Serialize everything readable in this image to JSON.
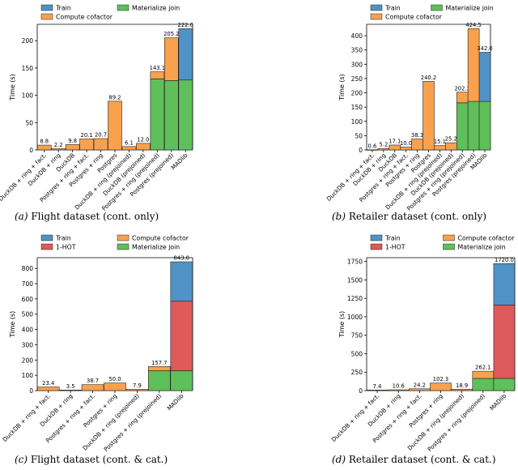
{
  "colors": {
    "train": "#4f93c7",
    "compute": "#f9a14d",
    "materialize": "#5fbf5b",
    "onehot": "#de5a5b",
    "edge": "#222222"
  },
  "chart_data": [
    {
      "type": "bar",
      "stacked": true,
      "caption_label": "(a)",
      "caption_text": "Flight dataset (cont. only)",
      "ylabel": "Time (s)",
      "ylim": [
        0,
        230
      ],
      "yticks": [
        0,
        50,
        100,
        150,
        200
      ],
      "legend": [
        {
          "name": "Train",
          "key": "train"
        },
        {
          "name": "Compute cofactor",
          "key": "compute"
        },
        {
          "name": "Materialize join",
          "key": "materialize"
        }
      ],
      "categories": [
        "DuckDB + ring + fact.",
        "DuckDB + ring",
        "DuckDB",
        "Postgres + ring + fact.",
        "Postgres + ring",
        "Postgres",
        "DuckDB + ring (prejoined)",
        "DuckDB (prejoined)",
        "Postgres + ring (prejoined)",
        "Postgres (prejoined)",
        "MADlib"
      ],
      "series": [
        {
          "name": "Materialize join",
          "key": "materialize",
          "values": [
            0,
            0,
            0,
            0,
            0,
            0,
            0,
            0,
            130,
            127,
            128
          ]
        },
        {
          "name": "Compute cofactor",
          "key": "compute",
          "values": [
            8.8,
            2.2,
            9.8,
            20.1,
            20.7,
            89.2,
            6.1,
            12.0,
            13.1,
            78.2,
            0
          ]
        },
        {
          "name": "Train",
          "key": "train",
          "values": [
            0,
            0,
            0,
            0,
            0,
            0,
            0,
            0,
            0,
            0,
            94
          ]
        }
      ],
      "totals": [
        "8.8",
        "2.2",
        "9.8",
        "20.1",
        "20.7",
        "89.2",
        "6.1",
        "12.0",
        "143.1",
        "205.2",
        "222.0"
      ]
    },
    {
      "type": "bar",
      "stacked": true,
      "caption_label": "(b)",
      "caption_text": "Retailer dataset (cont. only)",
      "ylabel": "Time (s)",
      "ylim": [
        0,
        440
      ],
      "yticks": [
        0,
        50,
        100,
        150,
        200,
        250,
        300,
        350,
        400
      ],
      "legend": [
        {
          "name": "Train",
          "key": "train"
        },
        {
          "name": "Compute cofactor",
          "key": "compute"
        },
        {
          "name": "Materialize join",
          "key": "materialize"
        }
      ],
      "categories": [
        "DuckDB + ring + fact.",
        "DuckDB + ring",
        "DuckDB",
        "Postgres + ring + fact.",
        "Postgres + ring",
        "Postgres",
        "DuckDB + ring (prejoined)",
        "DuckDB (prejoined)",
        "Postgres + ring (prejoined)",
        "Postgres (prejoined)",
        "MADlib"
      ],
      "series": [
        {
          "name": "Materialize join",
          "key": "materialize",
          "values": [
            0,
            0,
            0,
            0,
            0,
            0,
            0,
            0,
            165,
            170,
            170
          ]
        },
        {
          "name": "Compute cofactor",
          "key": "compute",
          "values": [
            0.6,
            5.2,
            17.1,
            10.0,
            38.3,
            240.2,
            15.1,
            25.2,
            37.2,
            254.5,
            0
          ]
        },
        {
          "name": "Train",
          "key": "train",
          "values": [
            0,
            0,
            0,
            0,
            0,
            0,
            0,
            0,
            0,
            0,
            172
          ]
        }
      ],
      "totals": [
        "0.6",
        "5.2",
        "17.1",
        "10.0",
        "38.3",
        "240.2",
        "15.1",
        "25.2",
        "202.2",
        "424.5",
        "342.0"
      ]
    },
    {
      "type": "bar",
      "stacked": true,
      "caption_label": "(c)",
      "caption_text": "Flight dataset (cont. & cat.)",
      "ylabel": "Time (s)",
      "ylim": [
        0,
        870
      ],
      "yticks": [
        0,
        100,
        200,
        300,
        400,
        500,
        600,
        700,
        800
      ],
      "legend": [
        {
          "name": "Train",
          "key": "train"
        },
        {
          "name": "1-HOT",
          "key": "onehot"
        },
        {
          "name": "Compute cofactor",
          "key": "compute"
        },
        {
          "name": "Materialize join",
          "key": "materialize"
        }
      ],
      "categories": [
        "DuckDB + ring + fact.",
        "DuckDB + ring",
        "Postgres + ring + fact.",
        "Postgres + ring",
        "DuckDB + ring (prejoined)",
        "Postgres + ring (prejoined)",
        "MADlib"
      ],
      "series": [
        {
          "name": "Materialize join",
          "key": "materialize",
          "values": [
            0,
            0,
            0,
            0,
            0,
            130,
            130
          ]
        },
        {
          "name": "Compute cofactor",
          "key": "compute",
          "values": [
            23.4,
            3.5,
            38.7,
            50.0,
            7.9,
            27.7,
            0
          ]
        },
        {
          "name": "1-HOT",
          "key": "onehot",
          "values": [
            0,
            0,
            0,
            0,
            0,
            0,
            455
          ]
        },
        {
          "name": "Train",
          "key": "train",
          "values": [
            0,
            0,
            0,
            0,
            0,
            0,
            258
          ]
        }
      ],
      "totals": [
        "23.4",
        "3.5",
        "38.7",
        "50.0",
        "7.9",
        "157.7",
        "843.0"
      ]
    },
    {
      "type": "bar",
      "stacked": true,
      "caption_label": "(d)",
      "caption_text": "Retailer dataset (cont. & cat.)",
      "ylabel": "Time (s)",
      "ylim": [
        0,
        1800
      ],
      "yticks": [
        0,
        250,
        500,
        750,
        1000,
        1250,
        1500,
        1750
      ],
      "legend": [
        {
          "name": "Train",
          "key": "train"
        },
        {
          "name": "1-HOT",
          "key": "onehot"
        },
        {
          "name": "Compute cofactor",
          "key": "compute"
        },
        {
          "name": "Materialize join",
          "key": "materialize"
        }
      ],
      "categories": [
        "DuckDB + ring + fact.",
        "DuckDB + ring",
        "Postgres + ring + fact.",
        "Postgres + ring",
        "DuckDB + ring (prejoined)",
        "Postgres + ring (prejoined)",
        "MADlib"
      ],
      "series": [
        {
          "name": "Materialize join",
          "key": "materialize",
          "values": [
            0,
            0,
            0,
            0,
            0,
            165,
            165
          ]
        },
        {
          "name": "Compute cofactor",
          "key": "compute",
          "values": [
            7.4,
            10.6,
            24.2,
            102.3,
            18.9,
            97.1,
            0
          ]
        },
        {
          "name": "1-HOT",
          "key": "onehot",
          "values": [
            0,
            0,
            0,
            0,
            0,
            0,
            995
          ]
        },
        {
          "name": "Train",
          "key": "train",
          "values": [
            0,
            0,
            0,
            0,
            0,
            0,
            560
          ]
        }
      ],
      "totals": [
        "7.4",
        "10.6",
        "24.2",
        "102.3",
        "18.9",
        "262.1",
        "1720.0"
      ]
    }
  ]
}
